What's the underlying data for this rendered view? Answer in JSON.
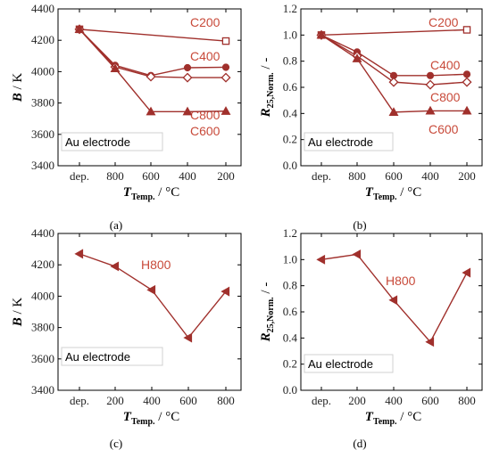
{
  "colors": {
    "series": "#a0302c",
    "series_light": "#c84a3a",
    "box": "#d0d0d0"
  },
  "chart_data": [
    {
      "id": "a",
      "type": "line",
      "panel_label": "(a)",
      "note": "Au electrode",
      "ylabel_main": "B",
      "ylabel_rest": " / K",
      "xlabel_main": "T",
      "xlabel_sub": "Temp.",
      "xlabel_rest": " / °C",
      "categories": [
        "dep.",
        "800",
        "600",
        "400",
        "200"
      ],
      "ylim": [
        3400,
        4400
      ],
      "yticks": [
        3400,
        3600,
        3800,
        4000,
        4200,
        4400
      ],
      "series": [
        {
          "name": "C200",
          "x": [
            0,
            4
          ],
          "values": [
            4270,
            4195
          ],
          "marker": "square"
        },
        {
          "name": "C400",
          "x": [
            0,
            1,
            2,
            3,
            4
          ],
          "values": [
            4270,
            4040,
            3975,
            4025,
            4028
          ],
          "marker": "circle"
        },
        {
          "name": "C800",
          "x": [
            0,
            1,
            2,
            3,
            4
          ],
          "values": [
            4270,
            4030,
            3968,
            3962,
            3962
          ],
          "marker": "diamond"
        },
        {
          "name": "C600",
          "x": [
            0,
            1,
            2,
            3,
            4
          ],
          "values": [
            4270,
            4020,
            3745,
            3745,
            3748
          ],
          "marker": "triangle"
        }
      ]
    },
    {
      "id": "b",
      "type": "line",
      "panel_label": "(b)",
      "note": "Au electrode",
      "ylabel_main": "R",
      "ylabel_sub": "25,Norm.",
      "ylabel_rest": " / -",
      "xlabel_main": "T",
      "xlabel_sub": "Temp.",
      "xlabel_rest": " / °C",
      "categories": [
        "dep.",
        "800",
        "600",
        "400",
        "200"
      ],
      "ylim": [
        0.0,
        1.2
      ],
      "yticks": [
        0.0,
        0.2,
        0.4,
        0.6,
        0.8,
        1.0,
        1.2
      ],
      "series": [
        {
          "name": "C200",
          "x": [
            0,
            4
          ],
          "values": [
            1.0,
            1.04
          ],
          "marker": "square"
        },
        {
          "name": "C400",
          "x": [
            0,
            1,
            2,
            3,
            4
          ],
          "values": [
            1.0,
            0.87,
            0.69,
            0.69,
            0.7
          ],
          "marker": "circle"
        },
        {
          "name": "C800",
          "x": [
            0,
            1,
            2,
            3,
            4
          ],
          "values": [
            1.0,
            0.84,
            0.64,
            0.62,
            0.64
          ],
          "marker": "diamond"
        },
        {
          "name": "C600",
          "x": [
            0,
            1,
            2,
            3,
            4
          ],
          "values": [
            1.0,
            0.82,
            0.41,
            0.42,
            0.42
          ],
          "marker": "triangle"
        }
      ]
    },
    {
      "id": "c",
      "type": "line",
      "panel_label": "(c)",
      "note": "Au electrode",
      "ylabel_main": "B",
      "ylabel_rest": " / K",
      "xlabel_main": "T",
      "xlabel_sub": "Temp.",
      "xlabel_rest": " / °C",
      "categories": [
        "dep.",
        "200",
        "400",
        "600",
        "800"
      ],
      "ylim": [
        3400,
        4400
      ],
      "yticks": [
        3400,
        3600,
        3800,
        4000,
        4200,
        4400
      ],
      "series": [
        {
          "name": "H800",
          "x": [
            0,
            1,
            2,
            3,
            4
          ],
          "values": [
            4270,
            4190,
            4040,
            3735,
            4030
          ],
          "marker": "triangle-left"
        }
      ]
    },
    {
      "id": "d",
      "type": "line",
      "panel_label": "(d)",
      "note": "Au electrode",
      "ylabel_main": "R",
      "ylabel_sub": "25,Norm.",
      "ylabel_rest": " / -",
      "xlabel_main": "T",
      "xlabel_sub": "Temp.",
      "xlabel_rest": " / °C",
      "categories": [
        "dep.",
        "200",
        "400",
        "600",
        "800"
      ],
      "ylim": [
        0.0,
        1.2
      ],
      "yticks": [
        0.0,
        0.2,
        0.4,
        0.6,
        0.8,
        1.0,
        1.2
      ],
      "series": [
        {
          "name": "H800",
          "x": [
            0,
            1,
            2,
            3,
            4
          ],
          "values": [
            1.0,
            1.04,
            0.69,
            0.37,
            0.9
          ],
          "marker": "triangle-left"
        }
      ]
    }
  ],
  "label_keys": [
    "C200",
    "C400",
    "C800",
    "C600",
    "H800"
  ]
}
